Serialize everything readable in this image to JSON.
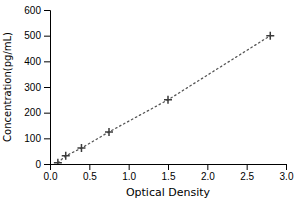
{
  "chart_data": {
    "type": "line",
    "x": [
      0.1,
      0.2,
      0.4,
      0.75,
      1.5,
      2.8
    ],
    "values": [
      5,
      32,
      62,
      125,
      250,
      500
    ],
    "xlabel": "Optical Density",
    "ylabel": "Concentration(pg/mL)",
    "xlim": [
      0,
      3
    ],
    "ylim": [
      0,
      600
    ],
    "xticks": [
      {
        "value": 0,
        "label": "0.0"
      },
      0.5,
      {
        "value": 1,
        "label": "1.0"
      },
      1.5,
      {
        "value": 2,
        "label": "2.0"
      },
      2.5,
      {
        "value": 3,
        "label": "3.0"
      }
    ],
    "yticks": [
      0,
      100,
      200,
      300,
      400,
      500,
      600
    ],
    "color": "#555555",
    "marker": "+",
    "line_style": "dotted"
  }
}
